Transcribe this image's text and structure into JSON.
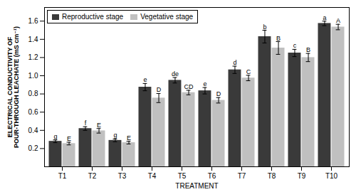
{
  "chart_data": {
    "type": "bar",
    "categories": [
      "T1",
      "T2",
      "T3",
      "T4",
      "T5",
      "T6",
      "T7",
      "T8",
      "T9",
      "T10"
    ],
    "series": [
      {
        "name": "Reproductive stage",
        "color": "#3a3a3a",
        "values": [
          0.28,
          0.42,
          0.29,
          0.875,
          0.95,
          0.835,
          1.065,
          1.43,
          1.25,
          1.575
        ],
        "errors": [
          0.015,
          0.02,
          0.015,
          0.04,
          0.03,
          0.035,
          0.04,
          0.07,
          0.04,
          0.025
        ],
        "letters": [
          "g",
          "f",
          "g",
          "e",
          "de",
          "e",
          "d",
          "b",
          "c",
          "a"
        ]
      },
      {
        "name": "Vegetative stage",
        "color": "#c0c0c0",
        "values": [
          0.255,
          0.395,
          0.265,
          0.755,
          0.815,
          0.73,
          0.975,
          1.305,
          1.2,
          1.535
        ],
        "errors": [
          0.015,
          0.025,
          0.015,
          0.05,
          0.025,
          0.03,
          0.03,
          0.07,
          0.045,
          0.03
        ],
        "letters": [
          "E",
          "E",
          "E",
          "D",
          "CD",
          "D",
          "C",
          "B",
          "B",
          "A"
        ]
      }
    ],
    "xlabel": "TREATMENT",
    "ylabel": "ELECTRICAL CONDUCTIVITY OF\nPOUR-THROUGH LEACHATE (mS cm⁻¹)",
    "ylim": [
      0.0,
      1.75
    ],
    "yticks": [
      0.2,
      0.4,
      0.6,
      0.8,
      {
        "value": 1.0,
        "label": "1.0"
      },
      1.2,
      1.4,
      1.6
    ],
    "legend": "upper left",
    "grid": false
  }
}
